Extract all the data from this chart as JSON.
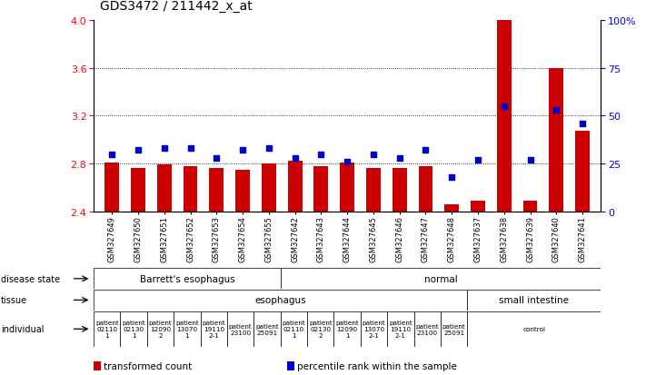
{
  "title": "GDS3472 / 211442_x_at",
  "samples": [
    "GSM327649",
    "GSM327650",
    "GSM327651",
    "GSM327652",
    "GSM327653",
    "GSM327654",
    "GSM327655",
    "GSM327642",
    "GSM327643",
    "GSM327644",
    "GSM327645",
    "GSM327646",
    "GSM327647",
    "GSM327648",
    "GSM327637",
    "GSM327638",
    "GSM327639",
    "GSM327640",
    "GSM327641"
  ],
  "bar_values": [
    2.81,
    2.76,
    2.79,
    2.78,
    2.76,
    2.75,
    2.8,
    2.82,
    2.78,
    2.81,
    2.76,
    2.76,
    2.78,
    2.46,
    2.49,
    4.0,
    2.49,
    3.6,
    3.07
  ],
  "dot_values_pct": [
    30,
    32,
    33,
    33,
    28,
    32,
    33,
    28,
    30,
    26,
    30,
    28,
    32,
    18,
    27,
    55,
    27,
    53,
    46
  ],
  "ylim": [
    2.4,
    4.0
  ],
  "yticks_left": [
    2.4,
    2.8,
    3.2,
    3.6,
    4.0
  ],
  "yticks_right": [
    0,
    25,
    50,
    75,
    100
  ],
  "bar_color": "#cc0000",
  "dot_color": "#0000cc",
  "bar_width": 0.55,
  "disease_state_groups": [
    {
      "label": "Barrett's esophagus",
      "start": 0,
      "end": 7,
      "color": "#90ee90"
    },
    {
      "label": "normal",
      "start": 7,
      "end": 19,
      "color": "#55cc55"
    }
  ],
  "tissue_groups": [
    {
      "label": "esophagus",
      "start": 0,
      "end": 14,
      "color": "#aaaaee"
    },
    {
      "label": "small intestine",
      "start": 14,
      "end": 19,
      "color": "#8888cc"
    }
  ],
  "individual_groups": [
    {
      "label": "patient\n02110\n1",
      "start": 0,
      "end": 1
    },
    {
      "label": "patient\n02130\n1",
      "start": 1,
      "end": 2
    },
    {
      "label": "patient\n12090\n2",
      "start": 2,
      "end": 3
    },
    {
      "label": "patient\n13070\n1",
      "start": 3,
      "end": 4
    },
    {
      "label": "patient\n19110\n2-1",
      "start": 4,
      "end": 5
    },
    {
      "label": "patient\n23100",
      "start": 5,
      "end": 6
    },
    {
      "label": "patient\n25091",
      "start": 6,
      "end": 7
    },
    {
      "label": "patient\n02110\n1",
      "start": 7,
      "end": 8
    },
    {
      "label": "patient\n02130\n2",
      "start": 8,
      "end": 9
    },
    {
      "label": "patient\n12090\n1",
      "start": 9,
      "end": 10
    },
    {
      "label": "patient\n13070\n2-1",
      "start": 10,
      "end": 11
    },
    {
      "label": "patient\n19110\n2-1",
      "start": 11,
      "end": 12
    },
    {
      "label": "patient\n23100",
      "start": 12,
      "end": 13
    },
    {
      "label": "patient\n25091",
      "start": 13,
      "end": 14
    },
    {
      "label": "control",
      "start": 14,
      "end": 19
    }
  ],
  "individual_esophagus_color": "#ffb0b0",
  "individual_intestine_color": "#ffe8e8",
  "row_labels": [
    "disease state",
    "tissue",
    "individual"
  ],
  "legend_items": [
    {
      "color": "#cc0000",
      "label": "transformed count"
    },
    {
      "color": "#0000cc",
      "label": "percentile rank within the sample"
    }
  ]
}
